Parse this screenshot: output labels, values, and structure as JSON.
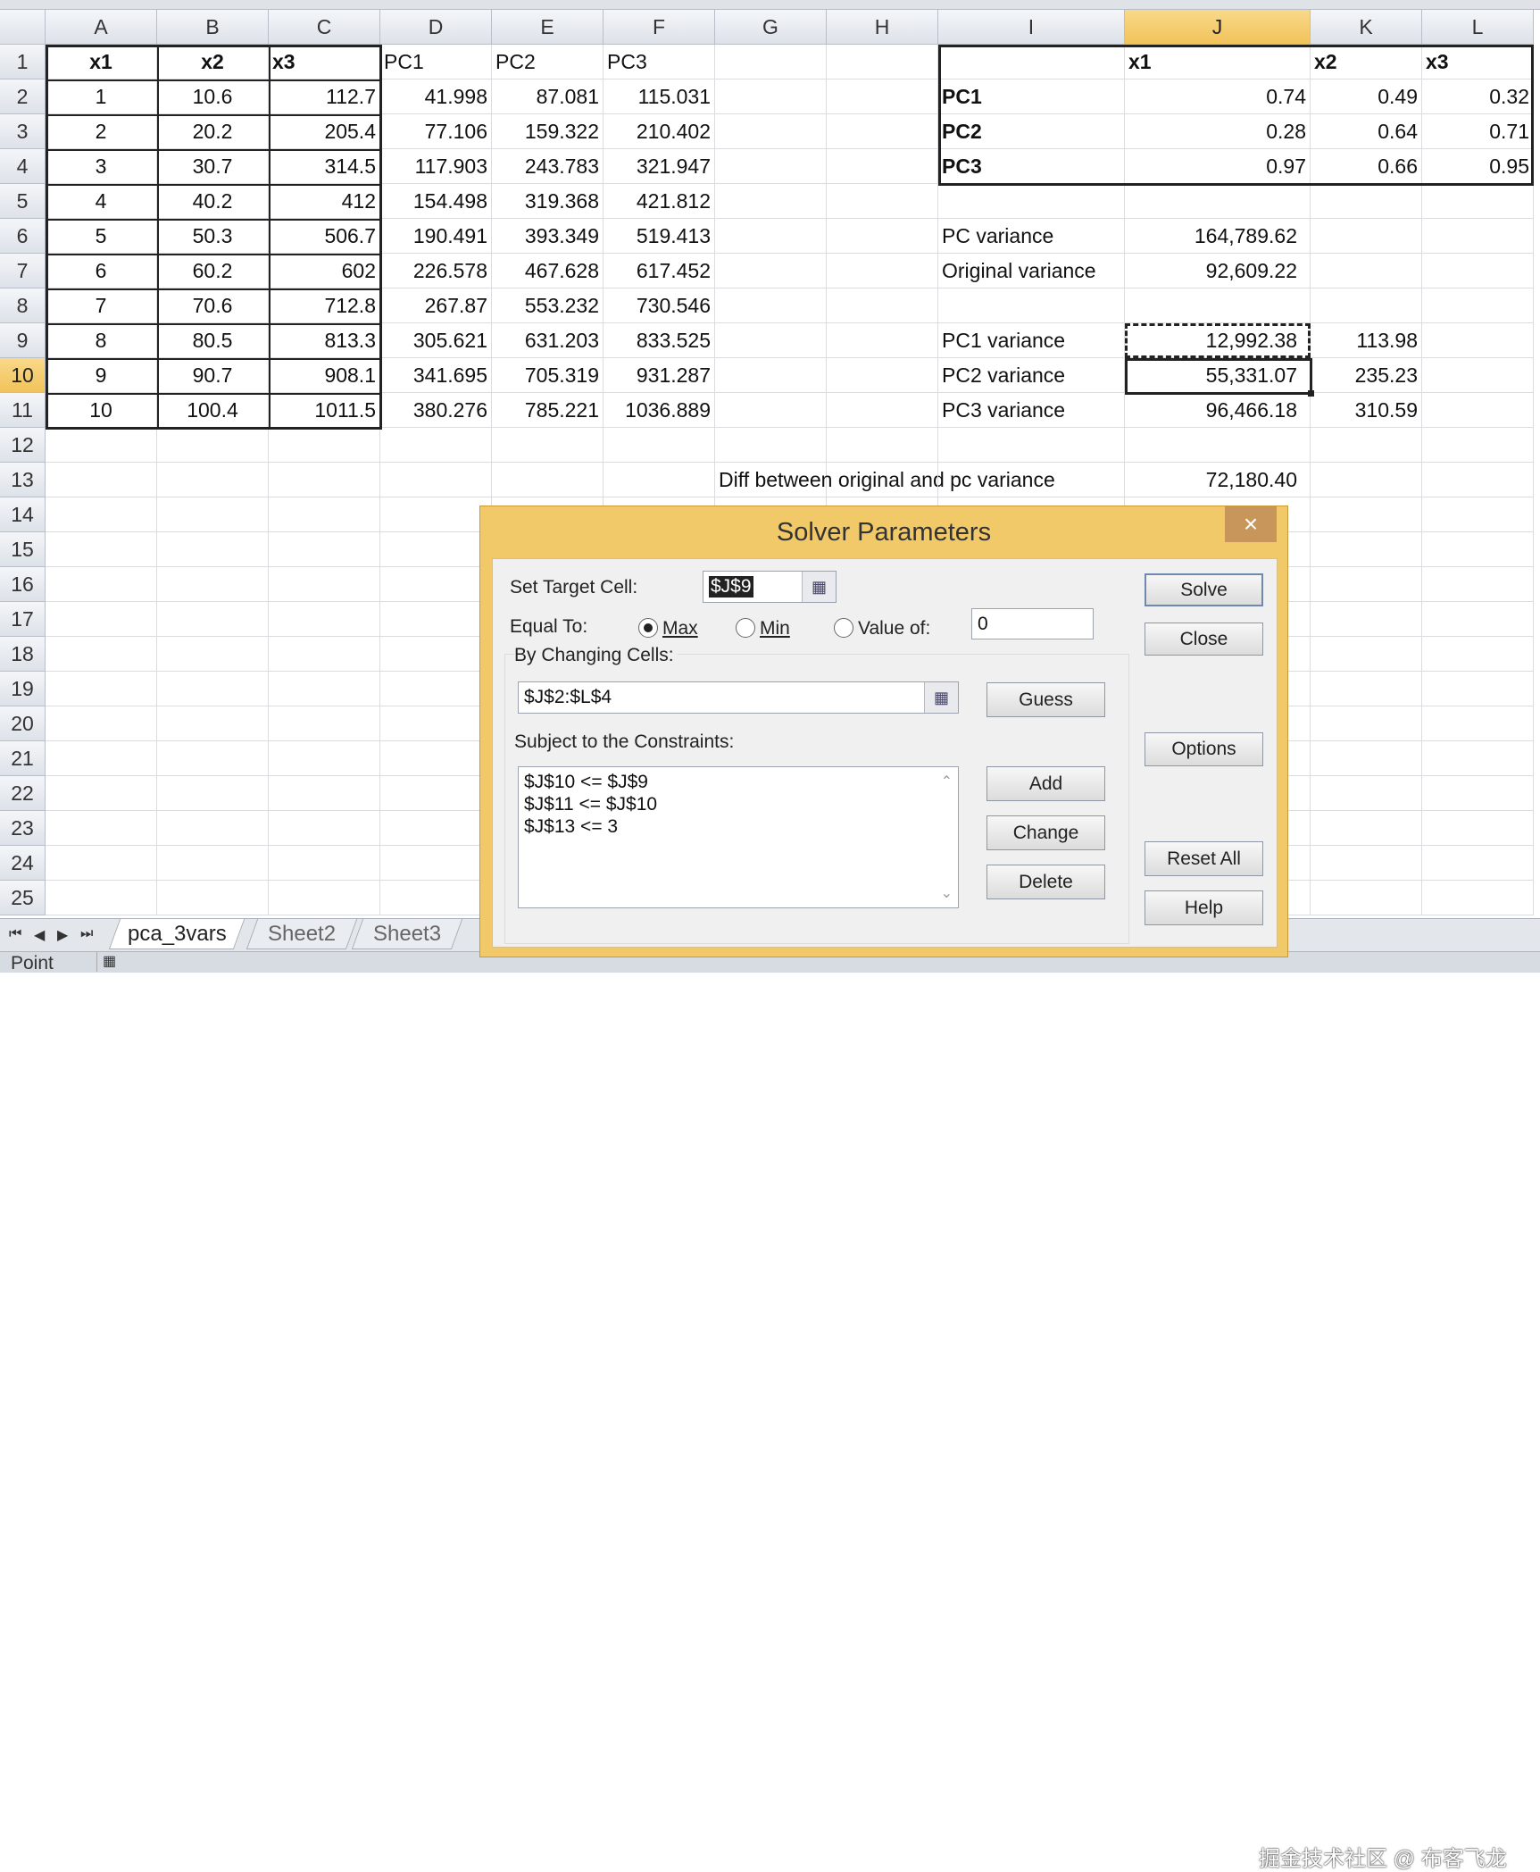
{
  "columns": [
    "A",
    "B",
    "C",
    "D",
    "E",
    "F",
    "G",
    "H",
    "I",
    "J",
    "K",
    "L"
  ],
  "selected_column": "J",
  "selected_row": 10,
  "rows": [
    [
      "x1",
      "x2",
      "x3",
      "PC1",
      "PC2",
      "PC3",
      "",
      "",
      "",
      "x1",
      "x2",
      "x3"
    ],
    [
      "1",
      "10.6",
      "112.7",
      "41.998",
      "87.081",
      "115.031",
      "",
      "",
      "PC1",
      "0.74",
      "0.49",
      "0.32"
    ],
    [
      "2",
      "20.2",
      "205.4",
      "77.106",
      "159.322",
      "210.402",
      "",
      "",
      "PC2",
      "0.28",
      "0.64",
      "0.71"
    ],
    [
      "3",
      "30.7",
      "314.5",
      "117.903",
      "243.783",
      "321.947",
      "",
      "",
      "PC3",
      "0.97",
      "0.66",
      "0.95"
    ],
    [
      "4",
      "40.2",
      "412",
      "154.498",
      "319.368",
      "421.812",
      "",
      "",
      "",
      "",
      "",
      ""
    ],
    [
      "5",
      "50.3",
      "506.7",
      "190.491",
      "393.349",
      "519.413",
      "",
      "",
      "PC variance",
      "164,789.62",
      "",
      ""
    ],
    [
      "6",
      "60.2",
      "602",
      "226.578",
      "467.628",
      "617.452",
      "",
      "",
      "Original variance",
      "92,609.22",
      "",
      ""
    ],
    [
      "7",
      "70.6",
      "712.8",
      "267.87",
      "553.232",
      "730.546",
      "",
      "",
      "",
      "",
      "",
      ""
    ],
    [
      "8",
      "80.5",
      "813.3",
      "305.621",
      "631.203",
      "833.525",
      "",
      "",
      "PC1 variance",
      "12,992.38",
      "113.98",
      ""
    ],
    [
      "9",
      "90.7",
      "908.1",
      "341.695",
      "705.319",
      "931.287",
      "",
      "",
      "PC2 variance",
      "55,331.07",
      "235.23",
      ""
    ],
    [
      "10",
      "100.4",
      "1011.5",
      "380.276",
      "785.221",
      "1036.889",
      "",
      "",
      "PC3 variance",
      "96,466.18",
      "310.59",
      ""
    ],
    [
      "",
      "",
      "",
      "",
      "",
      "",
      "",
      "",
      "",
      "",
      "",
      ""
    ],
    [
      "",
      "",
      "",
      "",
      "",
      "",
      "Diff between original and pc variance",
      "",
      "",
      "72,180.40",
      "",
      ""
    ],
    [
      "",
      "",
      "",
      "",
      "",
      "",
      "",
      "",
      "",
      "",
      "",
      ""
    ],
    [
      "",
      "",
      "",
      "",
      "",
      "",
      "",
      "",
      "",
      "",
      "",
      ""
    ],
    [
      "",
      "",
      "",
      "",
      "",
      "",
      "",
      "",
      "",
      "",
      "",
      ""
    ],
    [
      "",
      "",
      "",
      "",
      "",
      "",
      "",
      "",
      "",
      "",
      "",
      ""
    ],
    [
      "",
      "",
      "",
      "",
      "",
      "",
      "",
      "",
      "",
      "",
      "",
      ""
    ],
    [
      "",
      "",
      "",
      "",
      "",
      "",
      "",
      "",
      "",
      "",
      "",
      ""
    ],
    [
      "",
      "",
      "",
      "",
      "",
      "",
      "",
      "",
      "",
      "",
      "",
      ""
    ],
    [
      "",
      "",
      "",
      "",
      "",
      "",
      "",
      "",
      "",
      "",
      "",
      ""
    ],
    [
      "",
      "",
      "",
      "",
      "",
      "",
      "",
      "",
      "",
      "",
      "",
      ""
    ],
    [
      "",
      "",
      "",
      "",
      "",
      "",
      "",
      "",
      "",
      "",
      "",
      ""
    ],
    [
      "",
      "",
      "",
      "",
      "",
      "",
      "",
      "",
      "",
      "",
      "",
      ""
    ],
    [
      "",
      "",
      "",
      "",
      "",
      "",
      "",
      "",
      "",
      "",
      "",
      ""
    ]
  ],
  "sheets": {
    "tabs": [
      "pca_3vars",
      "Sheet2",
      "Sheet3"
    ],
    "active": "pca_3vars"
  },
  "status": {
    "mode": "Point"
  },
  "watermark": "掘金技术社区 @ 布客飞龙",
  "dialog": {
    "title": "Solver Parameters",
    "close": "×",
    "target_label": "Set Target Cell:",
    "target_value": "$J$9",
    "equal_to_label": "Equal To:",
    "options": {
      "max": "Max",
      "min": "Min",
      "value_of": "Value of:"
    },
    "selected_option": "max",
    "value_of": "0",
    "changing_label": "By Changing Cells:",
    "changing_value": "$J$2:$L$4",
    "constraints_label": "Subject to the Constraints:",
    "constraints": [
      "$J$10 <= $J$9",
      "$J$11 <= $J$10",
      "$J$13 <= 3"
    ],
    "buttons": {
      "solve": "Solve",
      "close": "Close",
      "options": "Options",
      "reset": "Reset All",
      "help": "Help",
      "guess": "Guess",
      "add": "Add",
      "change": "Change",
      "delete": "Delete"
    }
  },
  "colors": {
    "accent": "#f2c968",
    "selected_header": "#f1c35a"
  }
}
